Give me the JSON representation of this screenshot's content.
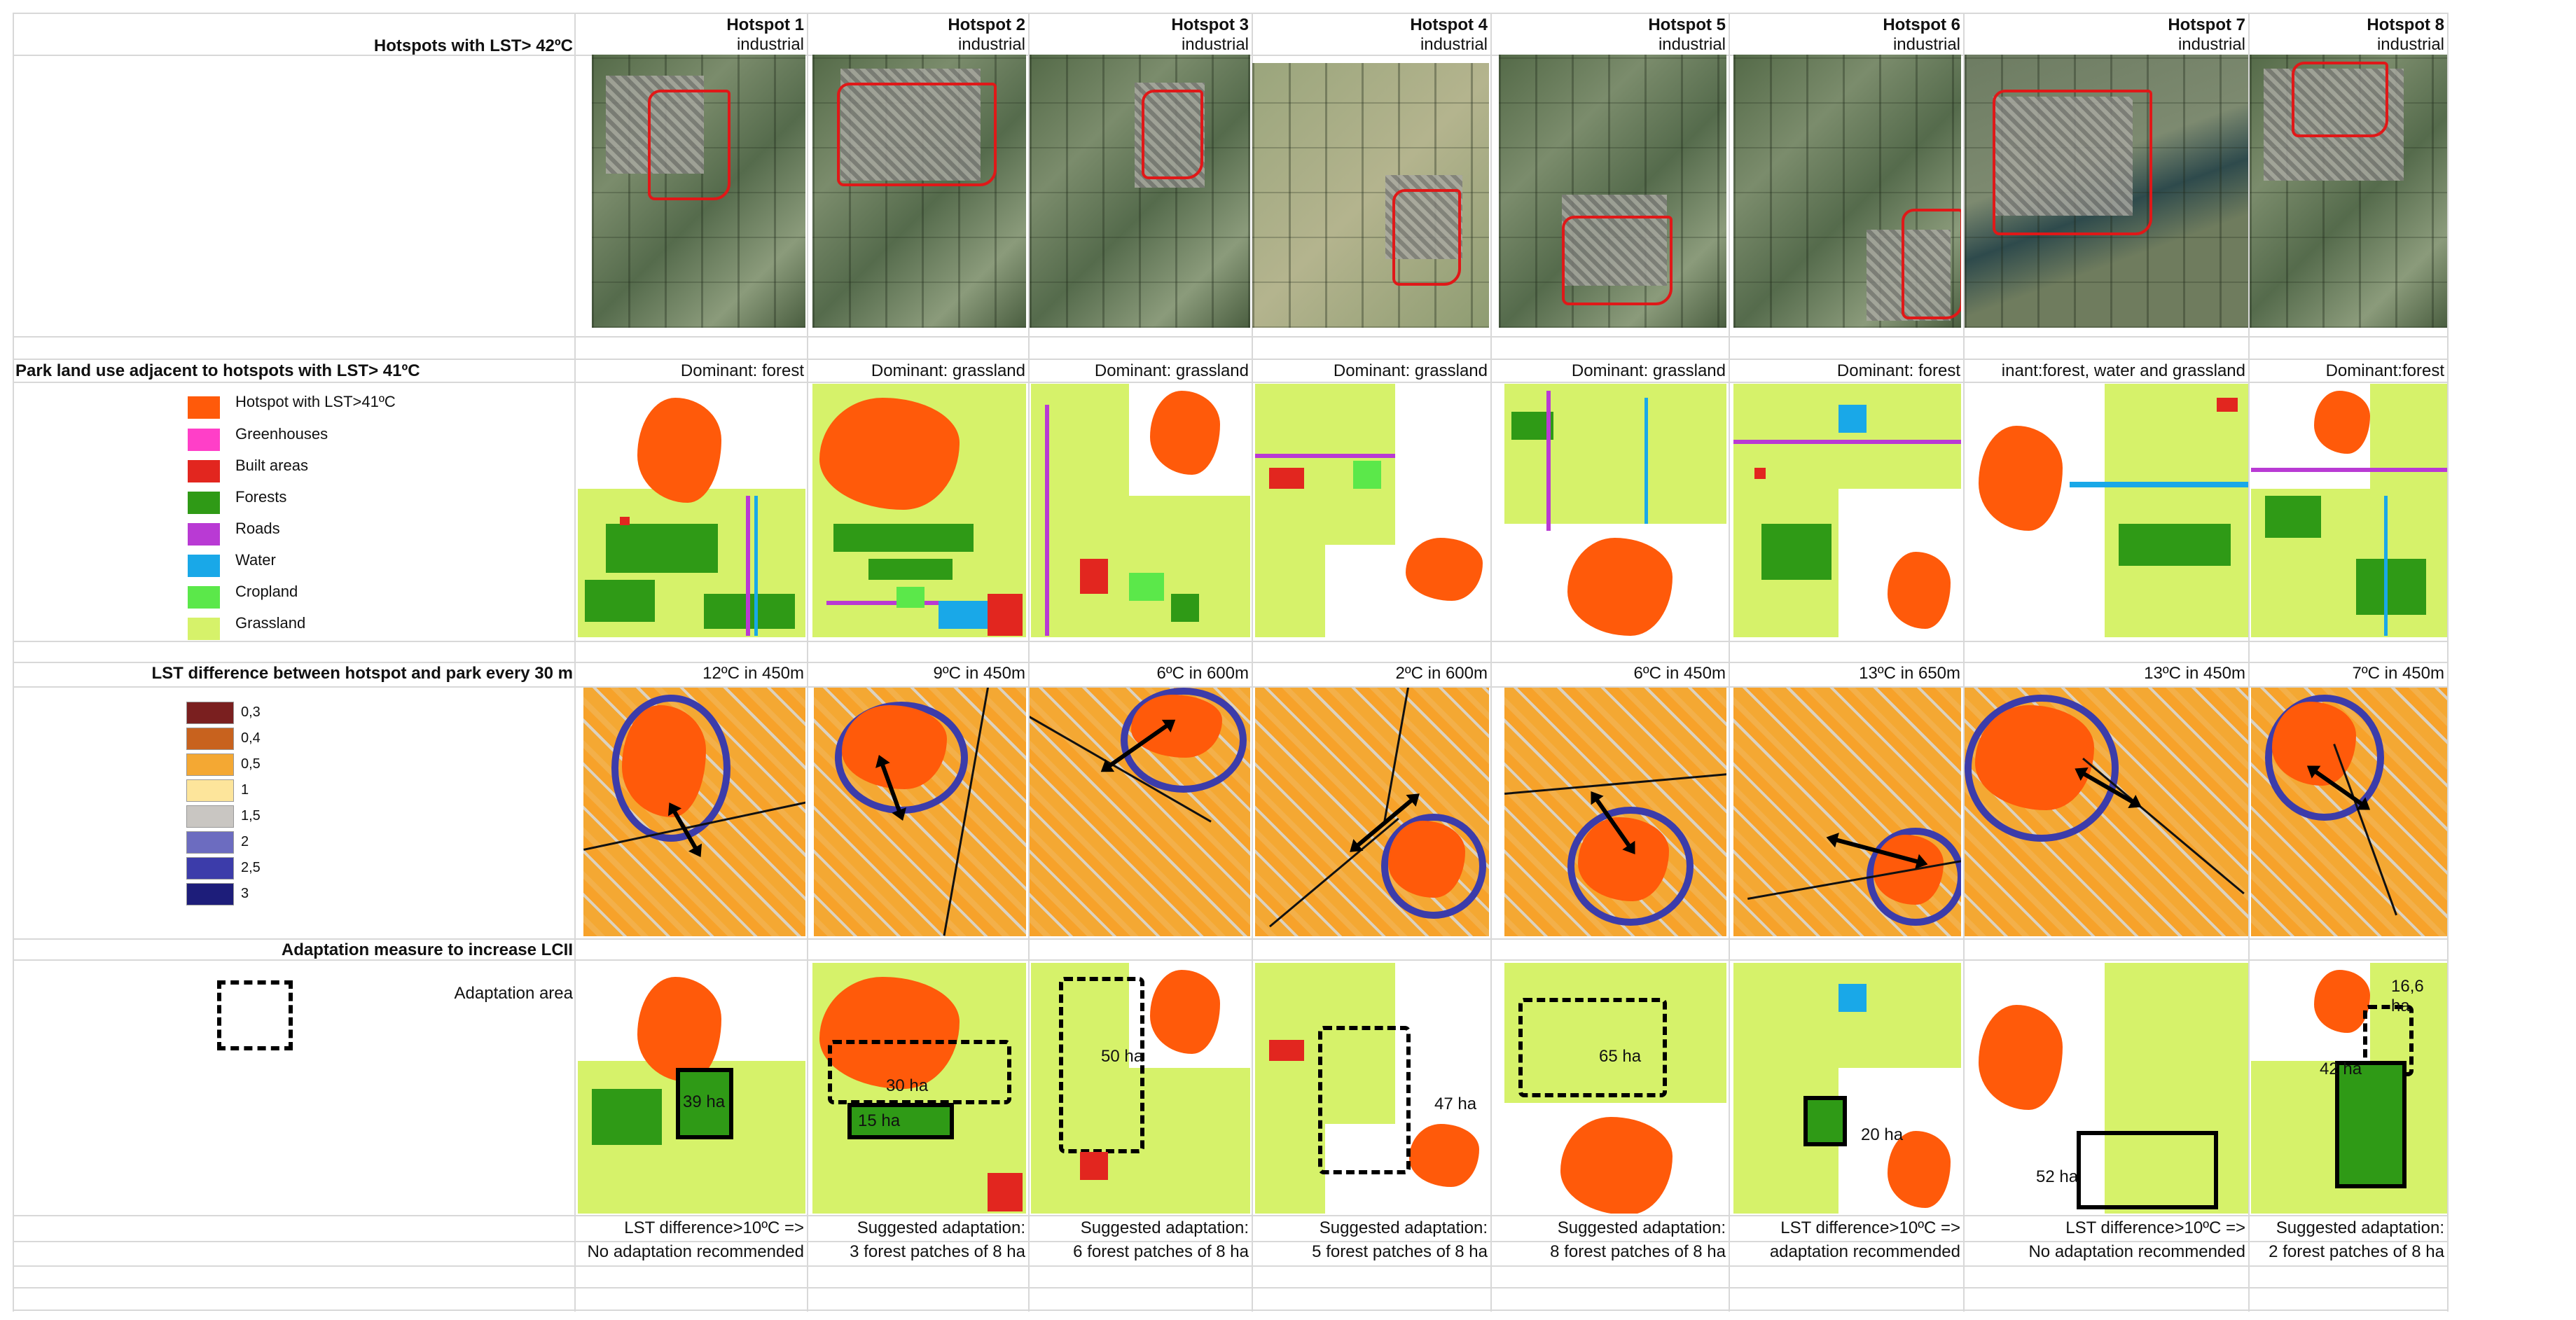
{
  "header": {
    "hotspots": [
      {
        "title": "Hotspot 1",
        "type": "industrial"
      },
      {
        "title": "Hotspot 2",
        "type": "industrial"
      },
      {
        "title": "Hotspot 3",
        "type": "industrial"
      },
      {
        "title": "Hotspot 4",
        "type": "industrial"
      },
      {
        "title": "Hotspot 5",
        "type": "industrial"
      },
      {
        "title": "Hotspot 6",
        "type": "industrial"
      },
      {
        "title": "Hotspot 7",
        "type": "industrial"
      },
      {
        "title": "Hotspot 8",
        "type": "industrial"
      }
    ]
  },
  "rows": {
    "row1_label": "Hotspots with LST> 42ºC",
    "row2_label": "Park land use adjacent to hotspots with LST> 41ºC",
    "row3_label": "LST difference between hotspot and park every 30 m",
    "row4_label": "Adaptation measure to increase  LCII",
    "adaptation_area_label": "Adaptation area"
  },
  "dominant": [
    "Dominant: forest",
    "Dominant: grassland",
    "Dominant: grassland",
    "Dominant: grassland",
    "Dominant: grassland",
    "Dominant: forest",
    "inant:forest, water and grassland",
    "Dominant:forest"
  ],
  "lst_difference": [
    "12ºC in 450m",
    "9ºC in 450m",
    "6ºC in 600m",
    "2ºC in 600m",
    "6ºC in 450m",
    "13ºC in 650m",
    "13ºC in 450m",
    "7ºC in 450m"
  ],
  "areas": [
    [
      "39 ha"
    ],
    [
      "30 ha",
      "15 ha"
    ],
    [
      "50 ha"
    ],
    [
      "47 ha"
    ],
    [
      "65 ha"
    ],
    [
      "20 ha"
    ],
    [
      "52 ha"
    ],
    [
      "42 ha",
      "16,6 ha"
    ]
  ],
  "recommendation_line1": [
    "LST difference>10ºC =>",
    "Suggested adaptation:",
    "Suggested adaptation:",
    "Suggested adaptation:",
    "Suggested adaptation:",
    "LST difference>10ºC =>",
    "LST difference>10ºC =>",
    "Suggested adaptation:"
  ],
  "recommendation_line2": [
    "No adaptation recommended",
    "3 forest patches of 8 ha",
    "6 forest patches of 8 ha",
    "5 forest patches of 8 ha",
    "8 forest patches of 8 ha",
    "adaptation recommended",
    "No adaptation recommended",
    "2 forest patches of 8 ha"
  ],
  "landuse_legend": [
    {
      "label": "Hotspot with LST>41ºC",
      "color": "#ff5a0a"
    },
    {
      "label": "Greenhouses",
      "color": "#ff3fc8"
    },
    {
      "label": "Built areas",
      "color": "#e2261f"
    },
    {
      "label": "Forests",
      "color": "#2f9a16"
    },
    {
      "label": "Roads",
      "color": "#b93ad4"
    },
    {
      "label": "Water",
      "color": "#19a8e8"
    },
    {
      "label": "Cropland",
      "color": "#5be84a"
    },
    {
      "label": "Grassland",
      "color": "#d6f26a"
    }
  ],
  "lst_legend": [
    {
      "label": "0,3",
      "color": "#7a1f1f"
    },
    {
      "label": "0,4",
      "color": "#c8621e"
    },
    {
      "label": "0,5",
      "color": "#f4a833"
    },
    {
      "label": "1",
      "color": "#fde59b"
    },
    {
      "label": "1,5",
      "color": "#c9c6c2"
    },
    {
      "label": "2",
      "color": "#6c6cc0"
    },
    {
      "label": "2,5",
      "color": "#3c3caa"
    },
    {
      "label": "3",
      "color": "#1d1d7a"
    }
  ]
}
